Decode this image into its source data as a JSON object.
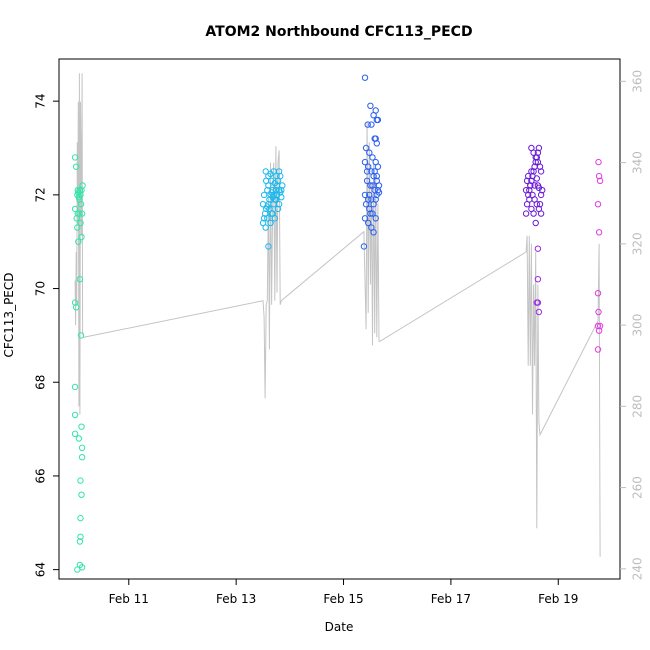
{
  "chart_data": {
    "type": "scatter",
    "title": "ATOM2 Northbound CFC113_PECD",
    "xlabel": "Date",
    "ylabel": "CFC113_PECD",
    "x_ticks": [
      "Feb 11",
      "Feb 13",
      "Feb 15",
      "Feb 17",
      "Feb 19"
    ],
    "x_tick_values": [
      11,
      13,
      15,
      17,
      19
    ],
    "xlim": [
      9.7,
      20.15
    ],
    "ylim": [
      63.8,
      74.9
    ],
    "y_ticks": [
      64,
      66,
      68,
      70,
      72,
      74
    ],
    "y2_ticks": [
      240,
      260,
      280,
      300,
      320,
      340,
      360
    ],
    "y2lim": [
      237.5,
      365.5
    ],
    "series": [
      {
        "color": "#33e5aa",
        "points": [
          [
            10.0,
            72.8
          ],
          [
            10.02,
            72.6
          ],
          [
            10.04,
            72.0
          ],
          [
            10.05,
            72.1
          ],
          [
            10.06,
            72.05
          ],
          [
            10.07,
            71.95
          ],
          [
            10.08,
            71.9
          ],
          [
            10.09,
            72.1
          ],
          [
            10.1,
            72.0
          ],
          [
            10.11,
            71.8
          ],
          [
            10.12,
            72.1
          ],
          [
            10.13,
            71.6
          ],
          [
            10.14,
            72.2
          ],
          [
            10.05,
            71.6
          ],
          [
            10.08,
            71.6
          ],
          [
            10.03,
            71.5
          ],
          [
            10.04,
            71.3
          ],
          [
            10.1,
            71.4
          ],
          [
            10.12,
            71.1
          ],
          [
            10.06,
            71.0
          ],
          [
            10.0,
            71.7
          ],
          [
            10.09,
            70.2
          ],
          [
            10.11,
            69.0
          ],
          [
            10.0,
            69.7
          ],
          [
            10.02,
            69.6
          ],
          [
            10.0,
            67.9
          ],
          [
            10.0,
            67.3
          ],
          [
            10.0,
            66.9
          ],
          [
            10.07,
            66.8
          ],
          [
            10.12,
            67.05
          ],
          [
            10.13,
            66.6
          ],
          [
            10.13,
            66.4
          ],
          [
            10.1,
            65.9
          ],
          [
            10.12,
            65.6
          ],
          [
            10.1,
            65.1
          ],
          [
            10.1,
            64.7
          ],
          [
            10.09,
            64.6
          ],
          [
            10.09,
            64.1
          ],
          [
            10.13,
            64.05
          ],
          [
            10.04,
            64.0
          ]
        ]
      },
      {
        "color": "#19b9ef",
        "points": [
          [
            13.5,
            71.4
          ],
          [
            13.52,
            71.5
          ],
          [
            13.54,
            71.6
          ],
          [
            13.56,
            71.7
          ],
          [
            13.58,
            71.75
          ],
          [
            13.6,
            71.8
          ],
          [
            13.62,
            71.9
          ],
          [
            13.64,
            72.0
          ],
          [
            13.66,
            72.05
          ],
          [
            13.68,
            72.1
          ],
          [
            13.7,
            72.0
          ],
          [
            13.72,
            71.9
          ],
          [
            13.74,
            72.1
          ],
          [
            13.76,
            72.2
          ],
          [
            13.78,
            72.3
          ],
          [
            13.8,
            72.1
          ],
          [
            13.55,
            72.5
          ],
          [
            13.6,
            72.4
          ],
          [
            13.65,
            72.3
          ],
          [
            13.7,
            72.5
          ],
          [
            13.75,
            72.4
          ],
          [
            13.8,
            72.5
          ],
          [
            13.82,
            72.4
          ],
          [
            13.52,
            72.0
          ],
          [
            13.58,
            72.1
          ],
          [
            13.62,
            71.7
          ],
          [
            13.66,
            71.6
          ],
          [
            13.7,
            71.8
          ],
          [
            13.74,
            71.9
          ],
          [
            13.78,
            71.7
          ],
          [
            13.6,
            72.2
          ],
          [
            13.68,
            71.95
          ],
          [
            13.72,
            72.25
          ],
          [
            13.76,
            72.0
          ],
          [
            13.82,
            72.05
          ],
          [
            13.84,
            72.1
          ],
          [
            13.86,
            72.2
          ],
          [
            13.58,
            71.5
          ],
          [
            13.55,
            71.3
          ],
          [
            13.6,
            70.9
          ],
          [
            13.64,
            71.4
          ],
          [
            13.68,
            71.6
          ],
          [
            13.72,
            71.5
          ],
          [
            13.8,
            71.8
          ],
          [
            13.84,
            71.95
          ],
          [
            13.56,
            72.3
          ],
          [
            13.64,
            72.45
          ],
          [
            13.5,
            71.8
          ]
        ]
      },
      {
        "color": "#2a5ff0",
        "points": [
          [
            15.4,
            74.5
          ],
          [
            15.5,
            73.9
          ],
          [
            15.6,
            73.8
          ],
          [
            15.62,
            73.6
          ],
          [
            15.64,
            73.6
          ],
          [
            15.56,
            73.7
          ],
          [
            15.45,
            73.5
          ],
          [
            15.52,
            73.5
          ],
          [
            15.58,
            73.2
          ],
          [
            15.6,
            73.2
          ],
          [
            15.62,
            73.1
          ],
          [
            15.42,
            73.0
          ],
          [
            15.48,
            72.9
          ],
          [
            15.54,
            72.8
          ],
          [
            15.6,
            72.7
          ],
          [
            15.64,
            72.6
          ],
          [
            15.4,
            72.7
          ],
          [
            15.46,
            72.6
          ],
          [
            15.52,
            72.5
          ],
          [
            15.56,
            72.4
          ],
          [
            15.62,
            72.3
          ],
          [
            15.44,
            72.3
          ],
          [
            15.5,
            72.2
          ],
          [
            15.58,
            72.1
          ],
          [
            15.64,
            72.1
          ],
          [
            15.4,
            72.0
          ],
          [
            15.46,
            71.9
          ],
          [
            15.52,
            71.9
          ],
          [
            15.56,
            71.8
          ],
          [
            15.62,
            72.0
          ],
          [
            15.42,
            71.8
          ],
          [
            15.48,
            71.7
          ],
          [
            15.54,
            71.6
          ],
          [
            15.6,
            71.5
          ],
          [
            15.66,
            72.2
          ],
          [
            15.4,
            71.5
          ],
          [
            15.46,
            71.4
          ],
          [
            15.52,
            71.3
          ],
          [
            15.56,
            71.2
          ],
          [
            15.38,
            70.9
          ],
          [
            15.5,
            71.6
          ],
          [
            15.6,
            71.9
          ],
          [
            15.44,
            72.5
          ],
          [
            15.58,
            72.5
          ],
          [
            15.48,
            72.0
          ],
          [
            15.54,
            72.2
          ],
          [
            15.62,
            72.4
          ],
          [
            15.66,
            72.05
          ]
        ]
      },
      {
        "color": "#6a1bd8",
        "points": [
          [
            18.4,
            71.6
          ],
          [
            18.42,
            71.8
          ],
          [
            18.44,
            72.0
          ],
          [
            18.46,
            72.1
          ],
          [
            18.48,
            72.2
          ],
          [
            18.5,
            72.3
          ],
          [
            18.52,
            72.4
          ],
          [
            18.54,
            72.5
          ],
          [
            18.56,
            72.6
          ],
          [
            18.58,
            72.7
          ],
          [
            18.6,
            72.8
          ],
          [
            18.62,
            72.9
          ],
          [
            18.64,
            73.0
          ],
          [
            18.5,
            73.0
          ],
          [
            18.54,
            72.9
          ],
          [
            18.58,
            72.8
          ],
          [
            18.62,
            72.7
          ],
          [
            18.66,
            72.6
          ],
          [
            18.68,
            72.5
          ],
          [
            18.44,
            72.4
          ],
          [
            18.48,
            72.2
          ],
          [
            18.52,
            72.0
          ],
          [
            18.56,
            71.9
          ],
          [
            18.6,
            71.8
          ],
          [
            18.64,
            71.7
          ],
          [
            18.68,
            72.0
          ],
          [
            18.4,
            72.1
          ],
          [
            18.46,
            71.9
          ],
          [
            18.5,
            71.7
          ],
          [
            18.54,
            71.6
          ],
          [
            18.58,
            71.4
          ],
          [
            18.62,
            72.2
          ],
          [
            18.66,
            71.8
          ],
          [
            18.7,
            72.1
          ],
          [
            18.42,
            72.3
          ],
          [
            18.56,
            72.2
          ],
          [
            18.6,
            72.35
          ],
          [
            18.64,
            72.15
          ],
          [
            18.68,
            71.6
          ],
          [
            18.5,
            72.5
          ]
        ]
      },
      {
        "color": "#9b2fe0",
        "points": [
          [
            18.62,
            70.85
          ],
          [
            18.62,
            70.2
          ],
          [
            18.6,
            69.7
          ],
          [
            18.62,
            69.7
          ],
          [
            18.64,
            69.5
          ]
        ]
      },
      {
        "color": "#e23de0",
        "points": [
          [
            19.75,
            72.7
          ],
          [
            19.76,
            72.4
          ],
          [
            19.78,
            72.3
          ],
          [
            19.74,
            71.8
          ],
          [
            19.76,
            71.2
          ],
          [
            19.74,
            69.9
          ],
          [
            19.75,
            69.5
          ],
          [
            19.74,
            69.2
          ],
          [
            19.78,
            69.2
          ],
          [
            19.76,
            69.1
          ],
          [
            19.74,
            68.7
          ]
        ]
      }
    ],
    "line": {
      "color": "#c4c4c4",
      "axis": "right",
      "points": [
        [
          10.0,
          311
        ],
        [
          10.01,
          300
        ],
        [
          10.02,
          318
        ],
        [
          10.03,
          305
        ],
        [
          10.04,
          345
        ],
        [
          10.05,
          325
        ],
        [
          10.06,
          355
        ],
        [
          10.07,
          280
        ],
        [
          10.08,
          362
        ],
        [
          10.09,
          278
        ],
        [
          10.1,
          355
        ],
        [
          10.11,
          340
        ],
        [
          10.12,
          322
        ],
        [
          10.13,
          362
        ],
        [
          10.14,
          298
        ],
        [
          10.16,
          297
        ],
        [
          13.5,
          306
        ],
        [
          13.52,
          302
        ],
        [
          13.54,
          282
        ],
        [
          13.56,
          305
        ],
        [
          13.58,
          306
        ],
        [
          13.6,
          332
        ],
        [
          13.62,
          294
        ],
        [
          13.64,
          340
        ],
        [
          13.66,
          305
        ],
        [
          13.68,
          330
        ],
        [
          13.7,
          340
        ],
        [
          13.72,
          306
        ],
        [
          13.74,
          344
        ],
        [
          13.76,
          308
        ],
        [
          13.78,
          340
        ],
        [
          13.8,
          343
        ],
        [
          13.82,
          305
        ],
        [
          13.84,
          306
        ],
        [
          15.38,
          323
        ],
        [
          15.42,
          299
        ],
        [
          15.44,
          350
        ],
        [
          15.46,
          303
        ],
        [
          15.48,
          345
        ],
        [
          15.5,
          310
        ],
        [
          15.52,
          335
        ],
        [
          15.54,
          295
        ],
        [
          15.56,
          340
        ],
        [
          15.58,
          298
        ],
        [
          15.6,
          337
        ],
        [
          15.62,
          297
        ],
        [
          15.64,
          330
        ],
        [
          15.66,
          296
        ],
        [
          15.68,
          296
        ],
        [
          18.4,
          318
        ],
        [
          18.42,
          322
        ],
        [
          18.44,
          290
        ],
        [
          18.46,
          322
        ],
        [
          18.48,
          290
        ],
        [
          18.5,
          320
        ],
        [
          18.52,
          278
        ],
        [
          18.54,
          310
        ],
        [
          18.56,
          290
        ],
        [
          18.58,
          318
        ],
        [
          18.6,
          250
        ],
        [
          18.62,
          310
        ],
        [
          18.64,
          276
        ],
        [
          18.66,
          273
        ],
        [
          19.74,
          301
        ],
        [
          19.76,
          320
        ],
        [
          19.78,
          243
        ]
      ]
    }
  }
}
